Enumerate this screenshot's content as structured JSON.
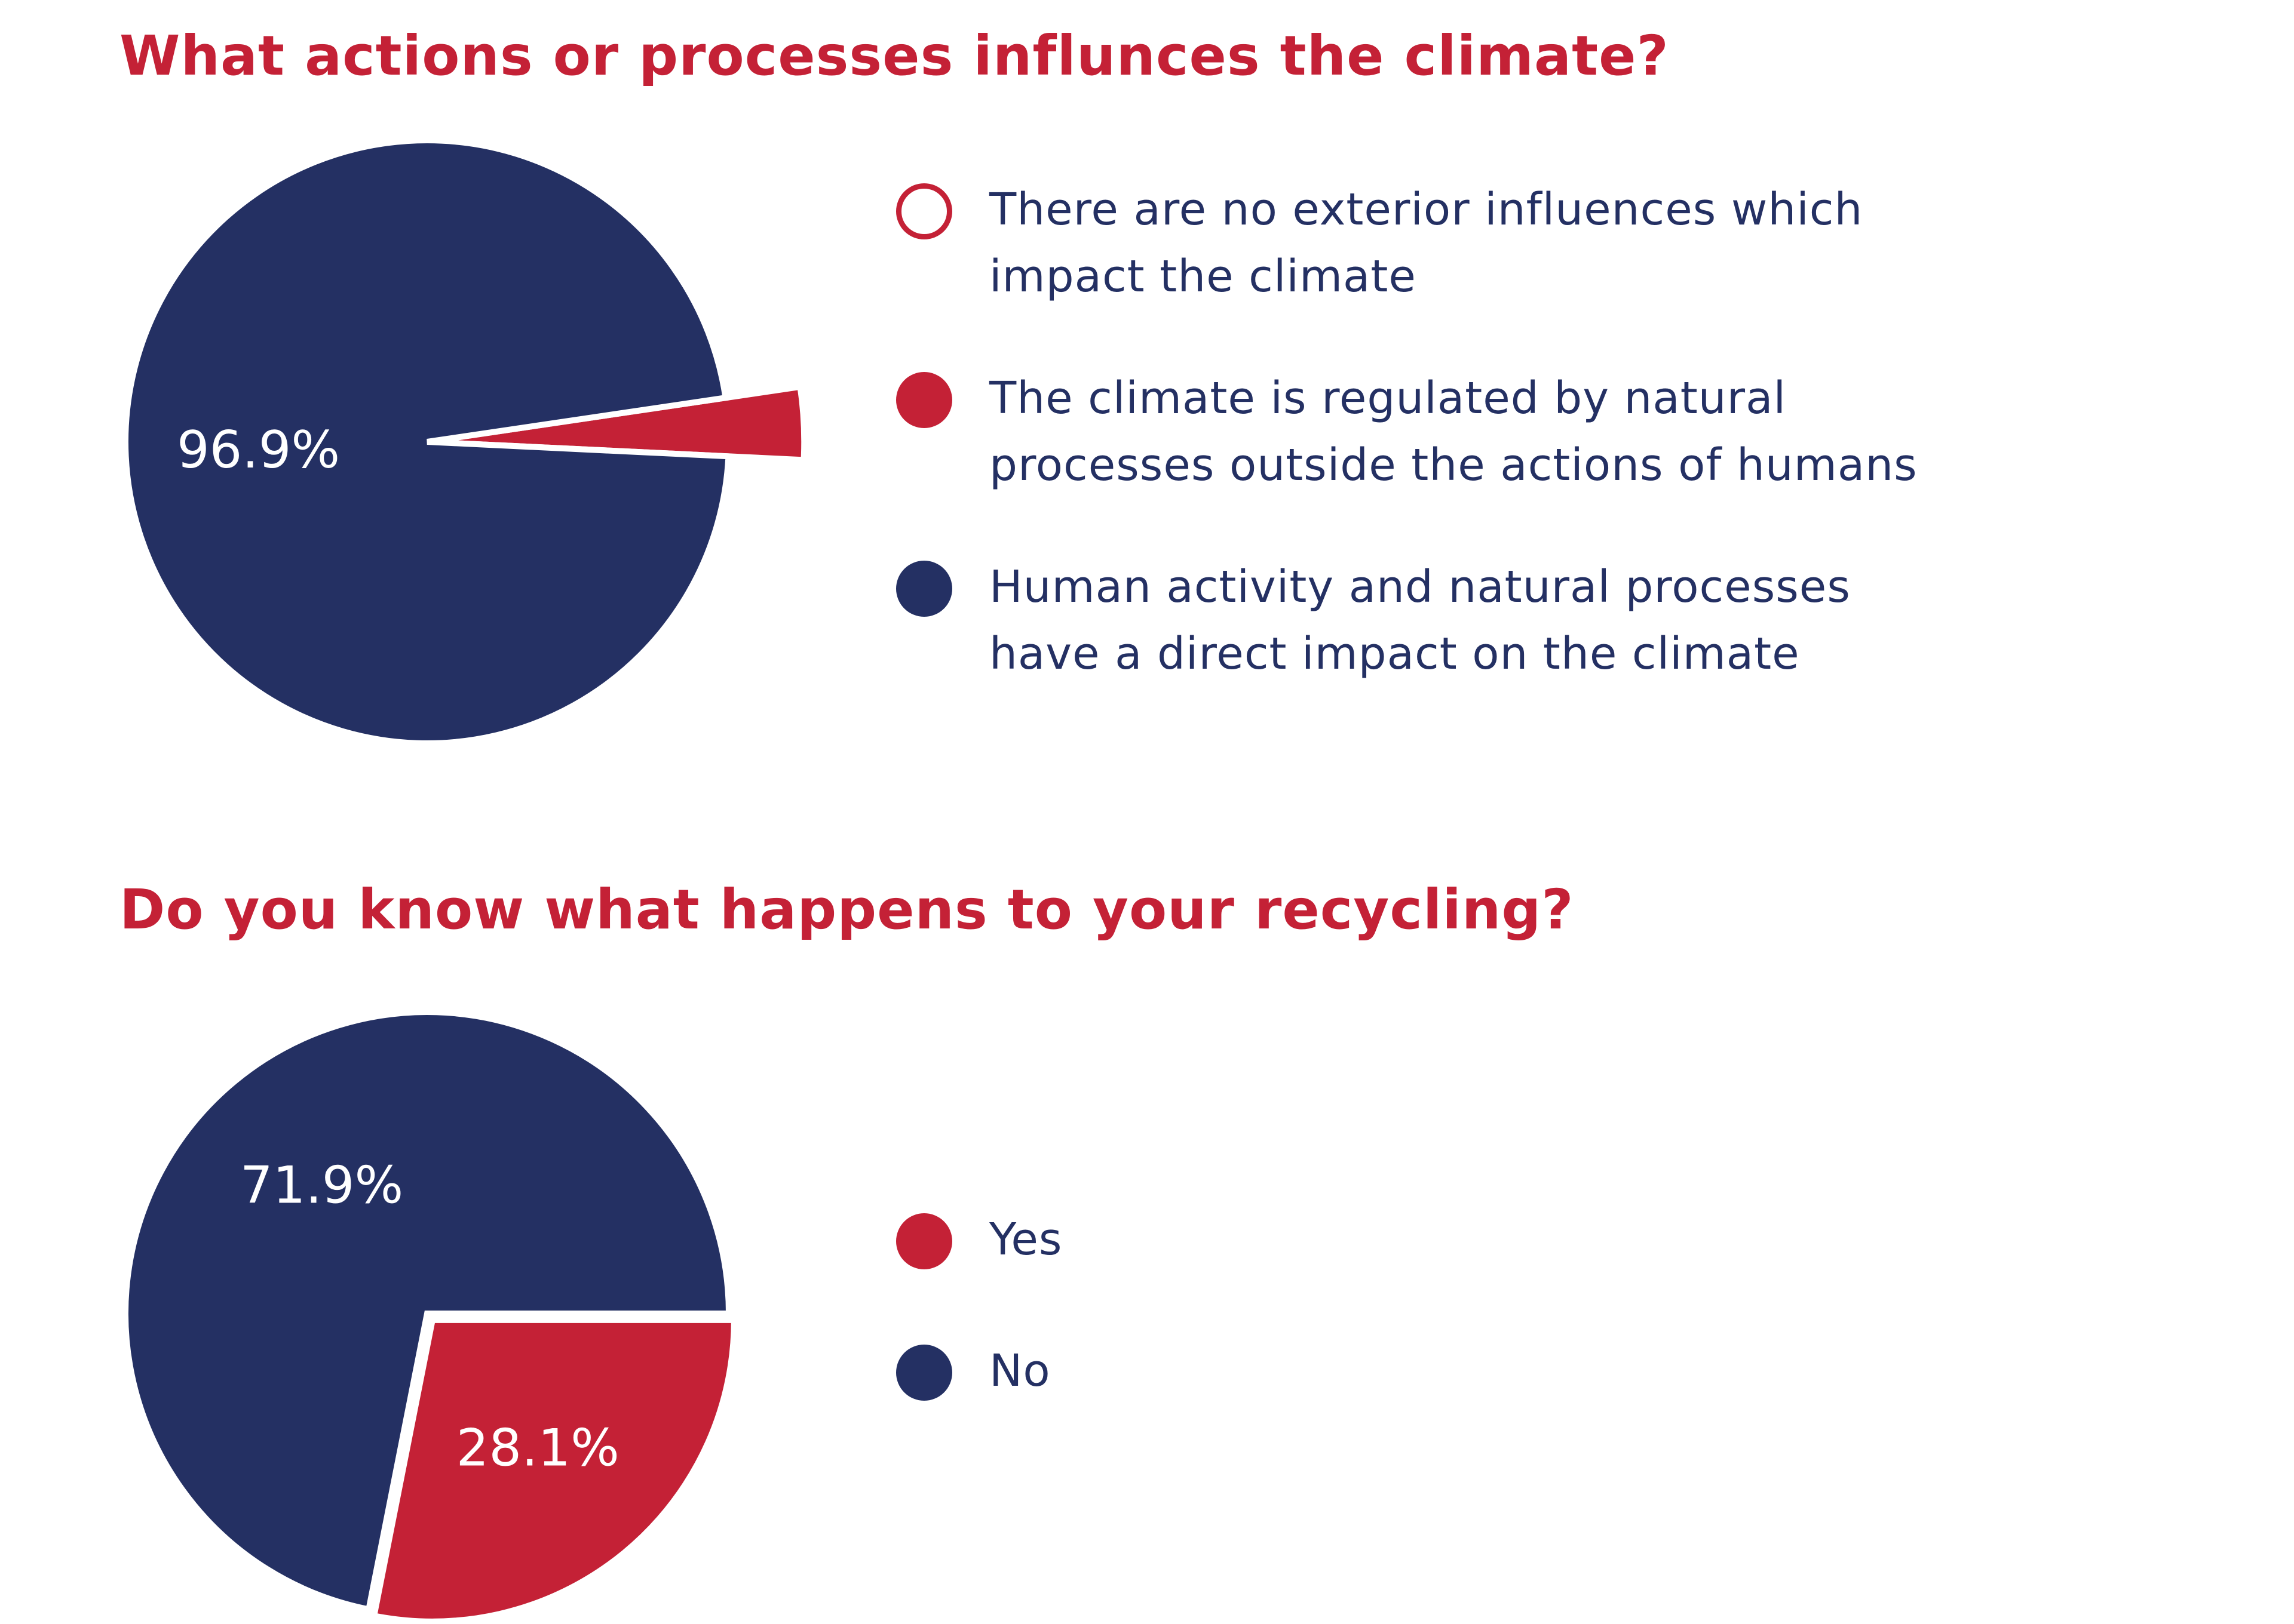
{
  "colors": {
    "navy": "#243063",
    "red": "#c42136",
    "white": "#ffffff"
  },
  "chart_data": [
    {
      "type": "pie",
      "title": "What actions or processes influnces the climate?",
      "slices": [
        {
          "label": "There are no exterior influences which impact the climate",
          "value": 0,
          "color": "#ffffff",
          "swatch": "outline",
          "show_value": false,
          "explode": false
        },
        {
          "label": "The climate is regulated by natural processes outside the actions of humans",
          "value": 3.1,
          "color": "#c42136",
          "swatch": "filled",
          "show_value": false,
          "explode": true
        },
        {
          "label": "Human activity and natural processes have a direct impact on the climate",
          "value": 96.9,
          "color": "#243063",
          "swatch": "filled",
          "show_value": true,
          "explode": false
        }
      ],
      "value_labels": [
        "",
        "",
        "96.9%"
      ],
      "legend_position": "right"
    },
    {
      "type": "pie",
      "title": "Do you know what happens to your recycling?",
      "slices": [
        {
          "label": "Yes",
          "value": 28.1,
          "color": "#c42136",
          "swatch": "filled",
          "show_value": true,
          "explode": true
        },
        {
          "label": "No",
          "value": 71.9,
          "color": "#243063",
          "swatch": "filled",
          "show_value": true,
          "explode": false
        }
      ],
      "value_labels": [
        "28.1%",
        "71.9%"
      ],
      "legend_position": "right"
    }
  ]
}
